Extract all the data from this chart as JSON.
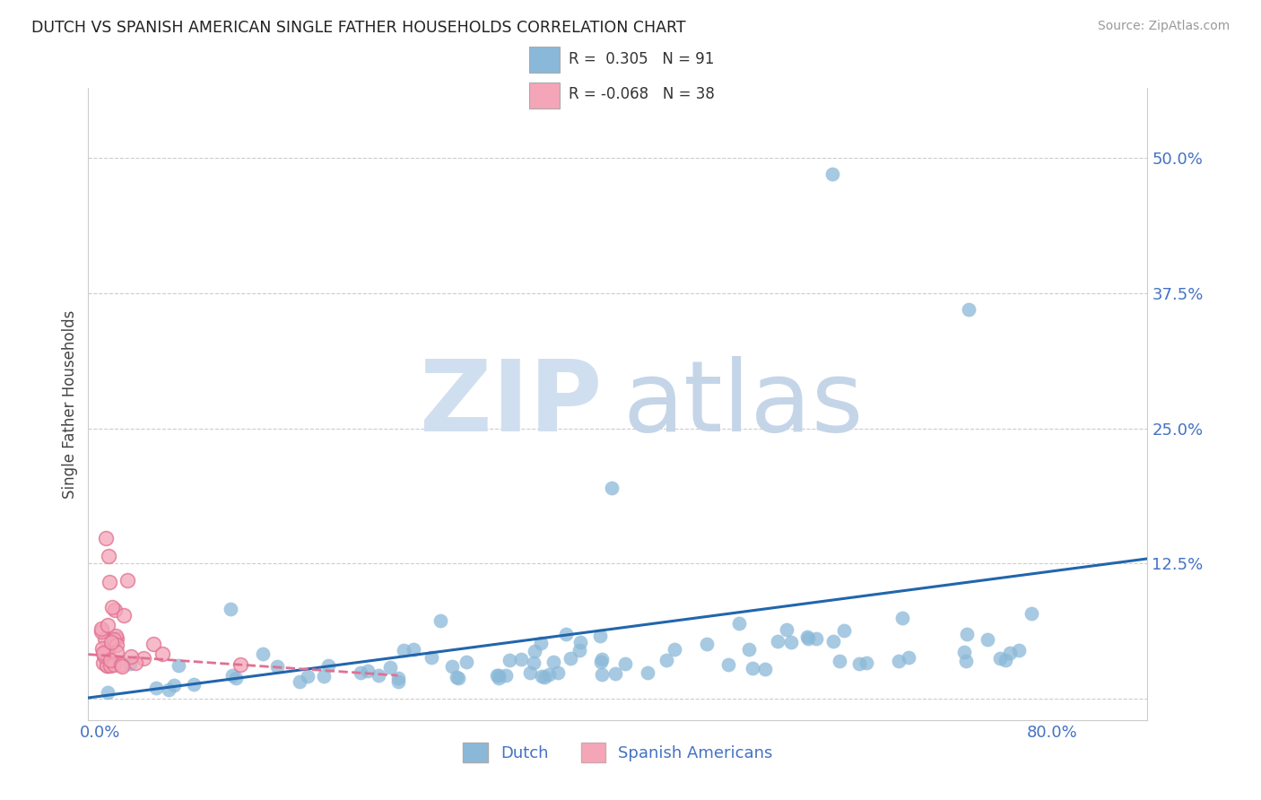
{
  "title": "DUTCH VS SPANISH AMERICAN SINGLE FATHER HOUSEHOLDS CORRELATION CHART",
  "source": "Source: ZipAtlas.com",
  "ylabel": "Single Father Households",
  "R_dutch": 0.305,
  "N_dutch": 91,
  "R_spanish": -0.068,
  "N_spanish": 38,
  "dutch_color": "#8ab8d8",
  "dutch_color_line": "#2166ac",
  "spanish_color": "#f4a5b8",
  "spanish_color_line": "#e07090",
  "legend_dutch_label": "Dutch",
  "legend_spanish_label": "Spanish Americans",
  "tick_color": "#4472c4",
  "ytick_values": [
    0.0,
    0.125,
    0.25,
    0.375,
    0.5
  ],
  "ytick_labels": [
    "",
    "12.5%",
    "25.0%",
    "37.5%",
    "50.0%"
  ],
  "xtick_values": [
    0.0,
    0.8
  ],
  "xtick_labels": [
    "0.0%",
    "80.0%"
  ],
  "xlim": [
    -0.01,
    0.88
  ],
  "ylim": [
    -0.02,
    0.565
  ],
  "grid_color": "#cccccc",
  "watermark_zip_color": "#d0dff0",
  "watermark_atlas_color": "#c5d5e8"
}
